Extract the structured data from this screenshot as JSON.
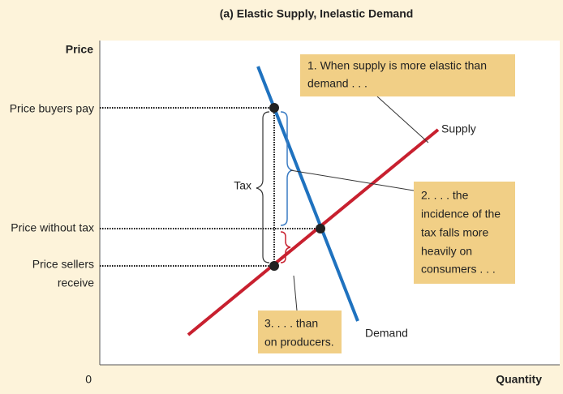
{
  "title": "(a) Elastic Supply, Inelastic Demand",
  "axes": {
    "y_label": "Price",
    "x_label": "Quantity",
    "origin": "0"
  },
  "price_labels": {
    "buyers": "Price buyers pay",
    "without_tax": "Price without tax",
    "sellers": [
      "Price sellers",
      "receive"
    ]
  },
  "curves": {
    "supply": "Supply",
    "demand": "Demand"
  },
  "tax_label": "Tax",
  "callouts": [
    {
      "lines": [
        "1. When supply is more elastic than",
        "demand . . ."
      ]
    },
    {
      "lines": [
        "2. . . . the",
        "incidence of the",
        "tax falls more",
        "heavily on",
        "consumers . . ."
      ]
    },
    {
      "lines": [
        "3. . . . than",
        "on producers."
      ]
    }
  ]
}
